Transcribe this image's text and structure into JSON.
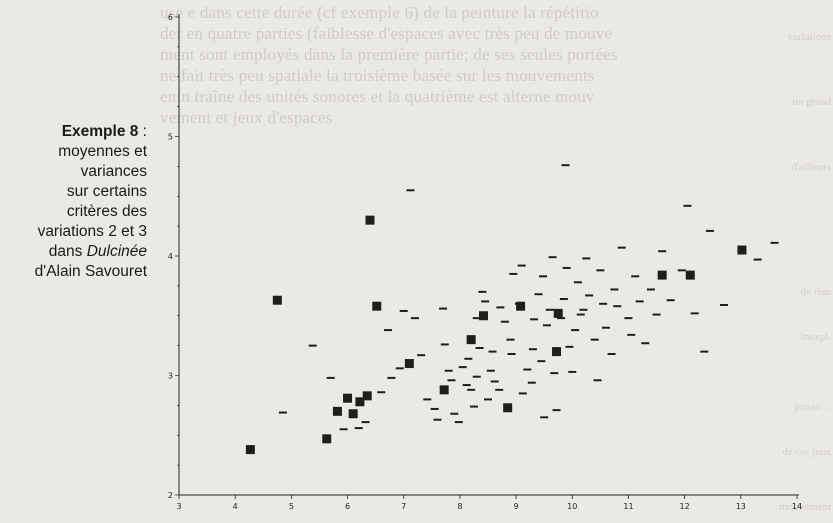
{
  "caption": {
    "title": "Exemple 8",
    "title_sep": " :",
    "lines": [
      "moyennes et",
      "variances",
      "sur certains",
      "critères des",
      "variations 2 et 3",
      "dans"
    ],
    "work": "Dulcinée",
    "author_line": "d'Alain Savouret"
  },
  "bleed_through": {
    "lines": [
      "use e dans cette durée (cf exemple 6) de la peinture la répétitio",
      "der en quatre parties (faiblesse d'espaces avec très peu de mouve",
      "ment sont employés dans la première partie; de ses seules portées",
      "ne fait très peu spatiale la troisième basée sur les mouvements",
      "enin traîne des unités sonores et la quatrième est alterne mouv",
      "vement et jeux d'espaces"
    ],
    "side": [
      "variations",
      "un grand",
      "d'ailleurs",
      "de rien",
      "inexpl.",
      "prisés ...",
      "de ces jeux",
      "mouvement"
    ]
  },
  "chart_data": {
    "type": "scatter",
    "title": "",
    "xlabel": "",
    "ylabel": "",
    "xlim": [
      3,
      14
    ],
    "ylim": [
      2,
      6
    ],
    "x_ticks": [
      3,
      4,
      5,
      6,
      7,
      8,
      9,
      10,
      11,
      12,
      13,
      14
    ],
    "y_ticks": [
      2,
      3,
      4,
      5,
      6
    ],
    "grid": false,
    "legend": "none",
    "colors": {
      "marks": "#1e1e1e",
      "axis": "#222222"
    },
    "series": [
      {
        "marker": "square",
        "points": [
          [
            4.27,
            2.38
          ],
          [
            4.75,
            3.63
          ],
          [
            5.63,
            2.47
          ],
          [
            5.82,
            2.7
          ],
          [
            6.0,
            2.81
          ],
          [
            6.1,
            2.68
          ],
          [
            6.22,
            2.78
          ],
          [
            6.35,
            2.83
          ],
          [
            6.4,
            4.3
          ],
          [
            6.52,
            3.58
          ],
          [
            7.1,
            3.1
          ],
          [
            7.72,
            2.88
          ],
          [
            8.2,
            3.3
          ],
          [
            8.42,
            3.5
          ],
          [
            8.85,
            2.73
          ],
          [
            9.08,
            3.58
          ],
          [
            9.75,
            3.52
          ],
          [
            9.72,
            3.2
          ],
          [
            11.6,
            3.84
          ],
          [
            12.1,
            3.84
          ],
          [
            13.02,
            4.05
          ]
        ]
      },
      {
        "marker": "dash",
        "points": [
          [
            4.85,
            2.69
          ],
          [
            5.38,
            3.25
          ],
          [
            5.7,
            2.98
          ],
          [
            5.93,
            2.55
          ],
          [
            6.2,
            2.56
          ],
          [
            6.32,
            2.61
          ],
          [
            6.6,
            2.86
          ],
          [
            6.72,
            3.38
          ],
          [
            6.78,
            2.98
          ],
          [
            6.93,
            3.06
          ],
          [
            7.0,
            3.54
          ],
          [
            7.12,
            4.55
          ],
          [
            7.2,
            3.48
          ],
          [
            7.31,
            3.17
          ],
          [
            7.42,
            2.8
          ],
          [
            7.55,
            2.72
          ],
          [
            7.6,
            2.63
          ],
          [
            7.7,
            3.56
          ],
          [
            7.73,
            3.26
          ],
          [
            7.8,
            3.04
          ],
          [
            7.85,
            2.96
          ],
          [
            7.9,
            2.68
          ],
          [
            7.98,
            2.61
          ],
          [
            8.05,
            3.07
          ],
          [
            8.12,
            2.92
          ],
          [
            8.15,
            3.14
          ],
          [
            8.2,
            2.88
          ],
          [
            8.25,
            2.74
          ],
          [
            8.3,
            3.48
          ],
          [
            8.3,
            2.99
          ],
          [
            8.35,
            3.23
          ],
          [
            8.4,
            3.7
          ],
          [
            8.45,
            3.62
          ],
          [
            8.5,
            2.8
          ],
          [
            8.55,
            3.04
          ],
          [
            8.58,
            3.2
          ],
          [
            8.62,
            2.95
          ],
          [
            8.7,
            2.88
          ],
          [
            8.72,
            3.57
          ],
          [
            8.8,
            3.45
          ],
          [
            8.9,
            3.3
          ],
          [
            8.92,
            3.18
          ],
          [
            8.95,
            3.85
          ],
          [
            9.05,
            3.6
          ],
          [
            9.1,
            3.92
          ],
          [
            9.12,
            2.85
          ],
          [
            9.2,
            3.05
          ],
          [
            9.28,
            2.94
          ],
          [
            9.3,
            3.22
          ],
          [
            9.32,
            3.47
          ],
          [
            9.4,
            3.68
          ],
          [
            9.45,
            3.12
          ],
          [
            9.48,
            3.83
          ],
          [
            9.5,
            2.65
          ],
          [
            9.55,
            3.42
          ],
          [
            9.6,
            3.55
          ],
          [
            9.65,
            3.99
          ],
          [
            9.68,
            3.02
          ],
          [
            9.72,
            2.71
          ],
          [
            9.8,
            3.48
          ],
          [
            9.85,
            3.64
          ],
          [
            9.88,
            4.76
          ],
          [
            9.9,
            3.9
          ],
          [
            9.95,
            3.24
          ],
          [
            10.0,
            3.03
          ],
          [
            10.05,
            3.38
          ],
          [
            10.1,
            3.78
          ],
          [
            10.15,
            3.51
          ],
          [
            10.2,
            3.55
          ],
          [
            10.25,
            3.98
          ],
          [
            10.3,
            3.67
          ],
          [
            10.4,
            3.3
          ],
          [
            10.45,
            2.96
          ],
          [
            10.5,
            3.88
          ],
          [
            10.55,
            3.6
          ],
          [
            10.6,
            3.4
          ],
          [
            10.7,
            3.18
          ],
          [
            10.75,
            3.72
          ],
          [
            10.8,
            3.58
          ],
          [
            10.88,
            4.07
          ],
          [
            11.0,
            3.48
          ],
          [
            11.05,
            3.34
          ],
          [
            11.12,
            3.83
          ],
          [
            11.2,
            3.62
          ],
          [
            11.3,
            3.27
          ],
          [
            11.4,
            3.72
          ],
          [
            11.5,
            3.51
          ],
          [
            11.6,
            4.04
          ],
          [
            11.75,
            3.63
          ],
          [
            11.95,
            3.88
          ],
          [
            12.05,
            4.42
          ],
          [
            12.18,
            3.52
          ],
          [
            12.35,
            3.2
          ],
          [
            12.45,
            4.21
          ],
          [
            12.7,
            3.59
          ],
          [
            13.3,
            3.97
          ],
          [
            13.6,
            4.11
          ]
        ]
      }
    ]
  }
}
